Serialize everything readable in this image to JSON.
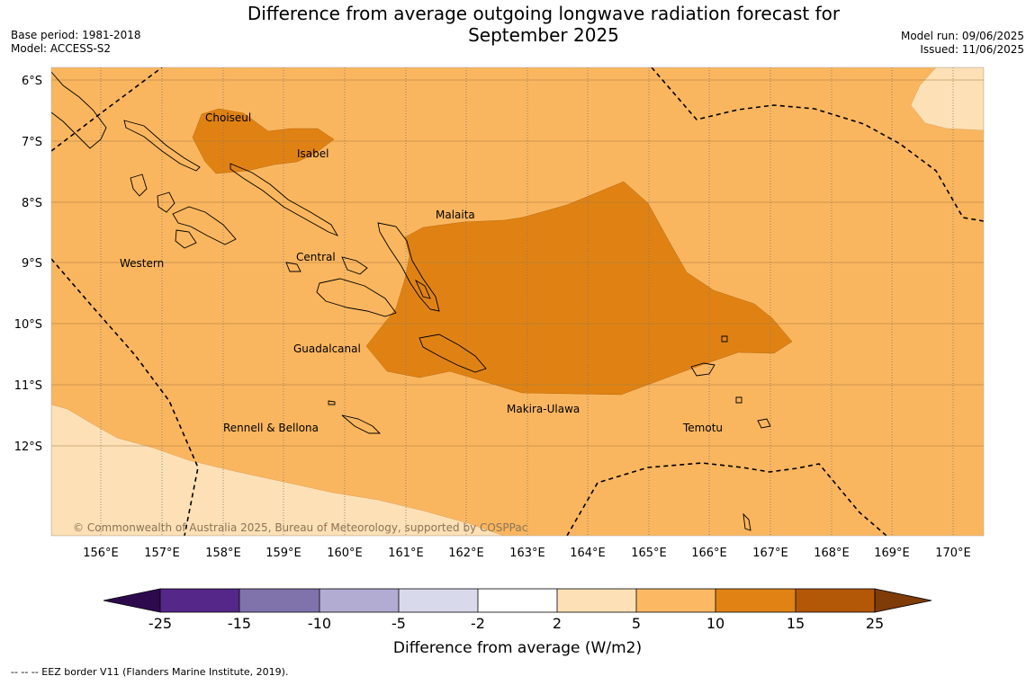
{
  "header": {
    "title_line1": "Difference from average outgoing longwave radiation forecast for",
    "title_line2": "September 2025",
    "base_period": "Base period: 1981-2018",
    "model": "Model: ACCESS-S2",
    "model_run": "Model run: 09/06/2025",
    "issued": "Issued: 11/06/2025"
  },
  "map": {
    "copyright": "© Commonwealth of Australia 2025, Bureau of Meteorology, supported by COSPPac",
    "lat_labels": [
      "6°S",
      "7°S",
      "8°S",
      "9°S",
      "10°S",
      "11°S",
      "12°S"
    ],
    "lon_labels": [
      "156°E",
      "157°E",
      "158°E",
      "159°E",
      "160°E",
      "161°E",
      "162°E",
      "163°E",
      "164°E",
      "165°E",
      "166°E",
      "167°E",
      "168°E",
      "169°E",
      "170°E"
    ],
    "region_labels": [
      {
        "name": "Choiseul"
      },
      {
        "name": "Isabel"
      },
      {
        "name": "Malaita"
      },
      {
        "name": "Western"
      },
      {
        "name": "Central"
      },
      {
        "name": "Guadalcanal"
      },
      {
        "name": "Makira-Ulawa"
      },
      {
        "name": "Rennell & Bellona"
      },
      {
        "name": "Temotu"
      }
    ],
    "fill_colors": {
      "class_2_5": "#fde0b5",
      "class_5_10": "#fab65f",
      "class_10_15": "#e08213"
    }
  },
  "colorbar": {
    "label": "Difference from average (W/m2)",
    "ticks": [
      "-25",
      "-15",
      "-10",
      "-5",
      "-2",
      "2",
      "5",
      "10",
      "15",
      "25"
    ],
    "colors": {
      "under": "#2d0a4e",
      "bins": [
        "#542788",
        "#8073ac",
        "#b2abd2",
        "#d8daeb",
        "#ffffff",
        "#fee0b6",
        "#fdb863",
        "#e08214",
        "#b35806"
      ],
      "over": "#7f3b08"
    }
  },
  "footer": {
    "eez_note": "--  --  -- EEZ border V11 (Flanders Marine Institute, 2019)."
  }
}
